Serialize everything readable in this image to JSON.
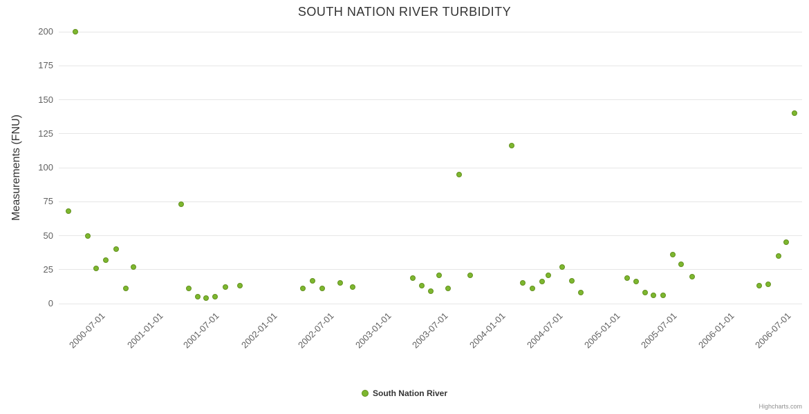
{
  "title": "SOUTH NATION RIVER TURBIDITY",
  "y_axis": {
    "title": "Measurements (FNU)",
    "ticks": [
      0,
      25,
      50,
      75,
      100,
      125,
      150,
      175,
      200
    ]
  },
  "x_axis": {
    "tick_labels": [
      "2000-07-01",
      "2001-01-01",
      "2001-07-01",
      "2002-01-01",
      "2002-07-01",
      "2003-01-01",
      "2003-07-01",
      "2004-01-01",
      "2004-07-01",
      "2005-01-01",
      "2005-07-01",
      "2006-01-01",
      "2006-07-01"
    ]
  },
  "legend": {
    "label": "South Nation River"
  },
  "credits": "Highcharts.com",
  "colors": {
    "marker_fill": "#7db72f",
    "marker_stroke": "#63901f",
    "grid": "#e6e6e6",
    "title_text": "#333333",
    "axis_label_text": "#606060"
  },
  "chart_data": {
    "type": "scatter",
    "title": "SOUTH NATION RIVER TURBIDITY",
    "xlabel": "",
    "ylabel": "Measurements (FNU)",
    "ylim": [
      0,
      200
    ],
    "x_range": [
      "2000-03-01",
      "2006-09-01"
    ],
    "grid": "horizontal",
    "legend_position": "bottom-center",
    "series": [
      {
        "name": "South Nation River",
        "points": [
          [
            "2000-04-01",
            68
          ],
          [
            "2000-04-23",
            200
          ],
          [
            "2000-06-02",
            50
          ],
          [
            "2000-06-28",
            26
          ],
          [
            "2000-07-29",
            32
          ],
          [
            "2000-08-31",
            40
          ],
          [
            "2000-10-01",
            11
          ],
          [
            "2000-10-26",
            27
          ],
          [
            "2001-03-27",
            73
          ],
          [
            "2001-04-20",
            11
          ],
          [
            "2001-05-19",
            5
          ],
          [
            "2001-06-15",
            4
          ],
          [
            "2001-07-14",
            5
          ],
          [
            "2001-08-16",
            12
          ],
          [
            "2001-10-01",
            13
          ],
          [
            "2002-04-20",
            11
          ],
          [
            "2002-05-21",
            17
          ],
          [
            "2002-06-21",
            11
          ],
          [
            "2002-08-18",
            15
          ],
          [
            "2002-09-26",
            12
          ],
          [
            "2003-04-07",
            19
          ],
          [
            "2003-05-05",
            13
          ],
          [
            "2003-06-02",
            9
          ],
          [
            "2003-06-30",
            21
          ],
          [
            "2003-07-28",
            11
          ],
          [
            "2003-09-01",
            95
          ],
          [
            "2003-10-06",
            21
          ],
          [
            "2004-02-16",
            116
          ],
          [
            "2004-03-23",
            15
          ],
          [
            "2004-04-23",
            11
          ],
          [
            "2004-05-24",
            16
          ],
          [
            "2004-06-13",
            21
          ],
          [
            "2004-07-27",
            27
          ],
          [
            "2004-08-27",
            17
          ],
          [
            "2004-09-25",
            8
          ],
          [
            "2005-02-18",
            19
          ],
          [
            "2005-03-19",
            16
          ],
          [
            "2005-04-18",
            8
          ],
          [
            "2005-05-15",
            6
          ],
          [
            "2005-06-13",
            6
          ],
          [
            "2005-07-14",
            36
          ],
          [
            "2005-08-11",
            29
          ],
          [
            "2005-09-14",
            20
          ],
          [
            "2006-04-18",
            13
          ],
          [
            "2006-05-15",
            14
          ],
          [
            "2006-06-17",
            35
          ],
          [
            "2006-07-13",
            45
          ],
          [
            "2006-08-07",
            140
          ]
        ]
      }
    ]
  }
}
